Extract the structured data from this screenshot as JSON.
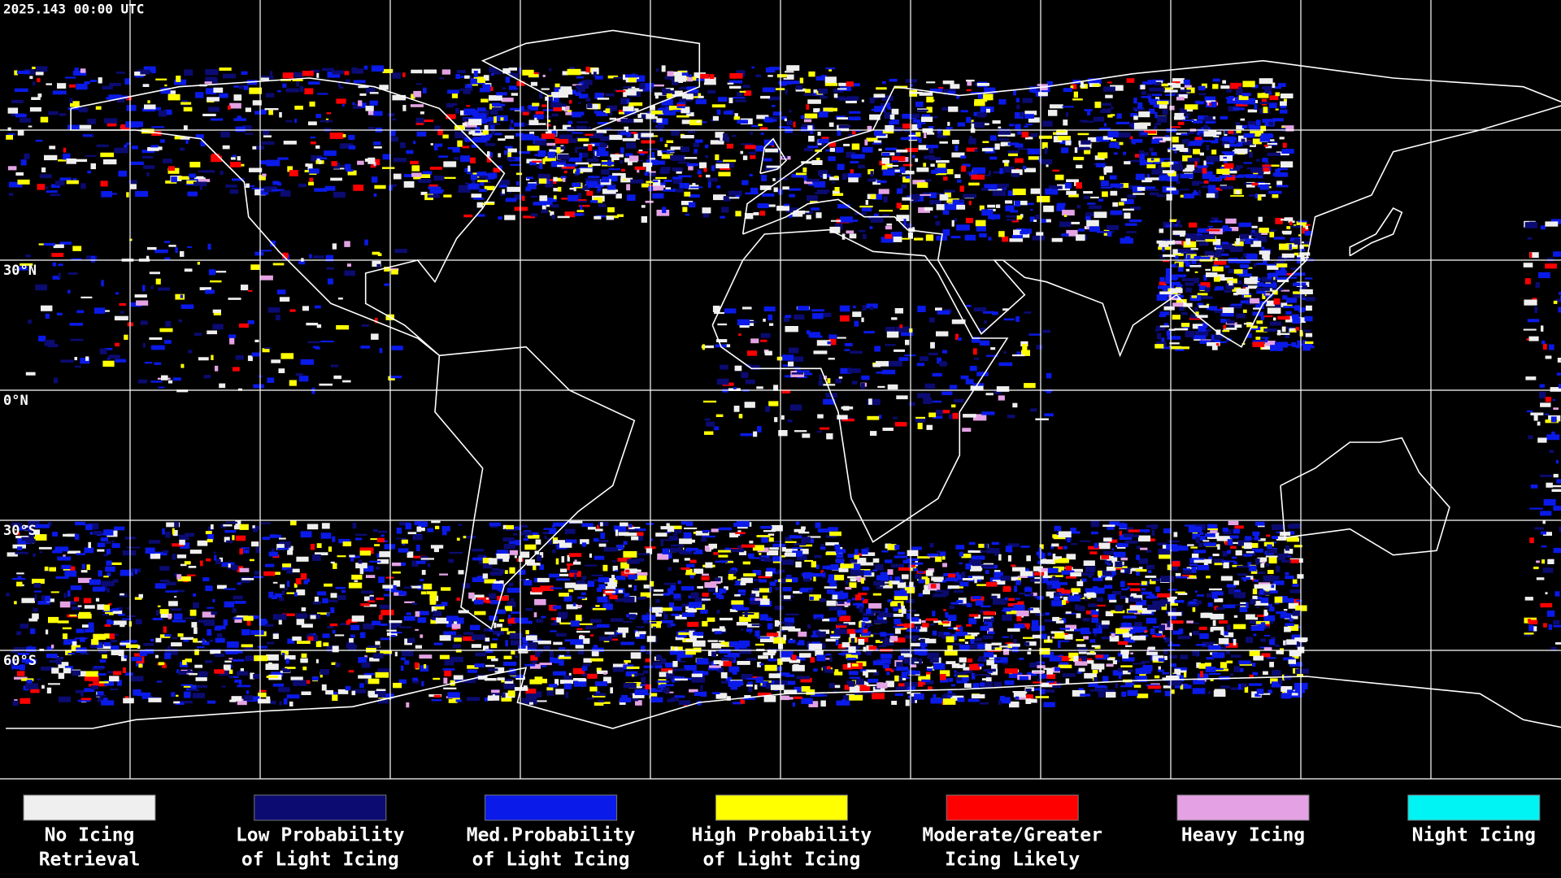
{
  "header": {
    "timestamp": "2025.143 00:00 UTC"
  },
  "map": {
    "latitude_labels": [
      "30°N",
      "0°N",
      "30°S",
      "60°S"
    ]
  },
  "legend": [
    {
      "label_lines": [
        "No Icing",
        "Retrieval"
      ],
      "color": "#efefef"
    },
    {
      "label_lines": [
        "Low Probability",
        "of Light Icing"
      ],
      "color": "#0b0b72"
    },
    {
      "label_lines": [
        "Med.Probability",
        "of Light Icing"
      ],
      "color": "#0a1ae8"
    },
    {
      "label_lines": [
        "High Probability",
        "of Light Icing"
      ],
      "color": "#ffff00"
    },
    {
      "label_lines": [
        "Moderate/Greater",
        "Icing Likely"
      ],
      "color": "#ff0000"
    },
    {
      "label_lines": [
        "Heavy Icing"
      ],
      "color": "#e4a2e4"
    },
    {
      "label_lines": [
        "Night Icing"
      ],
      "color": "#00f4f4"
    }
  ]
}
